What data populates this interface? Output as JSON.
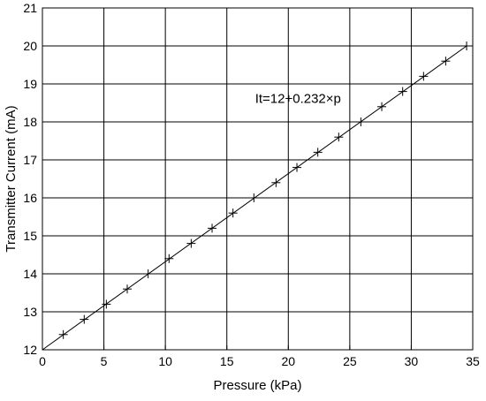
{
  "colors": {
    "background": "#ffffff",
    "axes": "#000000",
    "grid": "#000000",
    "line": "#000000",
    "markers": "#000000"
  },
  "chart_data": {
    "type": "line",
    "title": "",
    "xlabel": "Pressure (kPa)",
    "ylabel": "Transmitter Current (mA)",
    "xlim": [
      0,
      35
    ],
    "ylim": [
      12,
      21
    ],
    "xticks": [
      0,
      5,
      10,
      15,
      20,
      25,
      30,
      35
    ],
    "yticks": [
      12,
      13,
      14,
      15,
      16,
      17,
      18,
      19,
      20,
      21
    ],
    "grid": true,
    "legend": "none",
    "annotation": {
      "text": "It=12+0.232×p",
      "x": 17.3,
      "y": 18.5
    },
    "series": [
      {
        "type": "line",
        "x": [
          0,
          34.5
        ],
        "y": [
          12,
          20.0
        ]
      },
      {
        "type": "scatter",
        "marker": "+",
        "x": [
          1.7,
          3.4,
          5.2,
          6.9,
          8.6,
          10.3,
          12.1,
          13.8,
          15.5,
          17.2,
          19.0,
          20.7,
          22.4,
          24.1,
          25.9,
          27.6,
          29.3,
          31.0,
          32.8,
          34.5
        ],
        "y": [
          12.4,
          12.8,
          13.2,
          13.6,
          14.0,
          14.4,
          14.8,
          15.2,
          15.6,
          16.0,
          16.4,
          16.8,
          17.2,
          17.6,
          18.0,
          18.4,
          18.8,
          19.2,
          19.6,
          20.0
        ]
      }
    ]
  }
}
